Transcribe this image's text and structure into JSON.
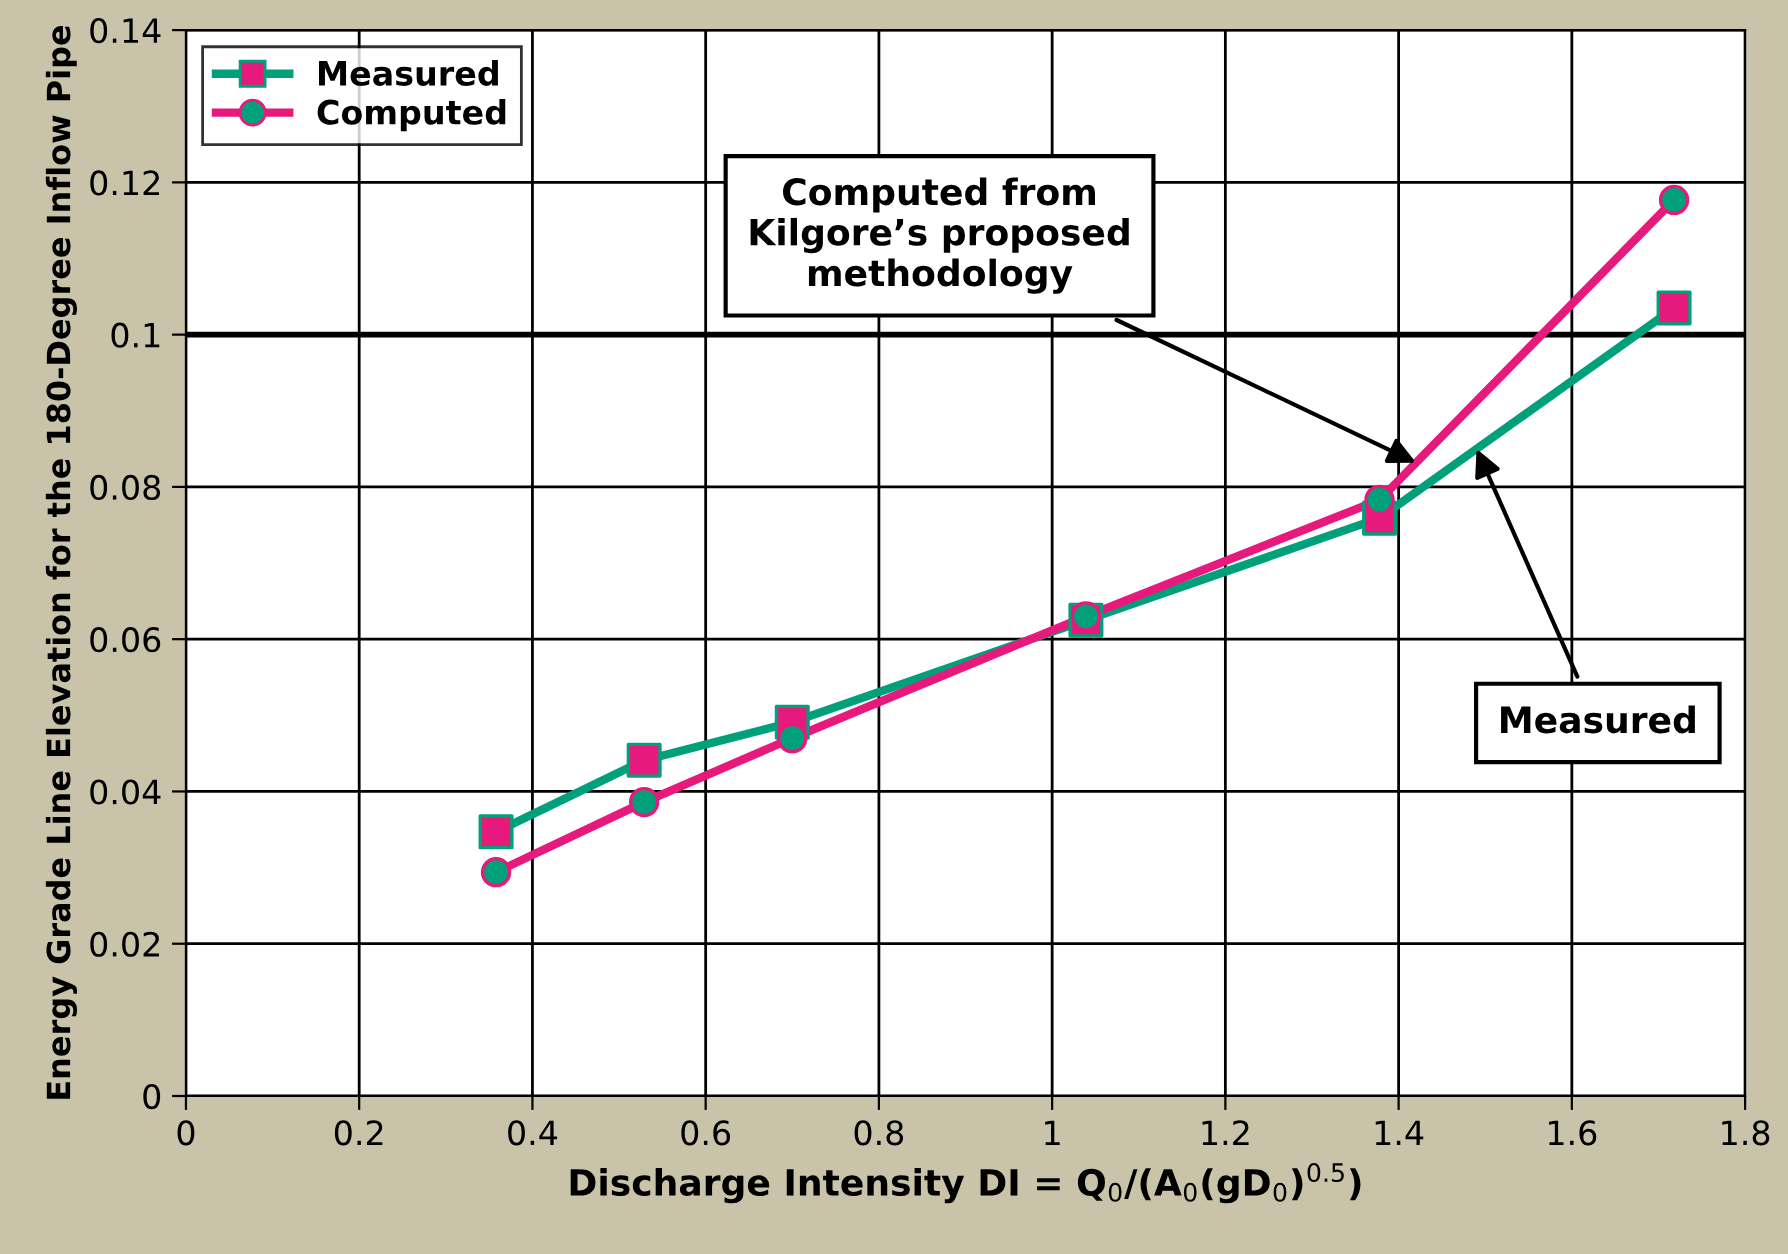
{
  "chart_data": {
    "type": "line",
    "xlabel": "Discharge Intensity DI = Q$_{0}$/(A$_{0}$(gD$_{0}$)$^{0.5}$)",
    "ylabel": "Energy Grade Line Elevation for the 180-Degree Inflow Pipe",
    "xlim": [
      0,
      1.8
    ],
    "xticks": [
      0,
      0.2,
      0.4,
      0.6,
      0.8,
      1,
      1.2,
      1.4,
      1.6,
      1.8
    ],
    "ylim": [
      0,
      0.14
    ],
    "yticks": [
      0,
      0.02,
      0.04,
      0.06,
      0.08,
      0.1,
      0.12,
      0.14
    ],
    "grid": true,
    "legend": "top left",
    "ref_lines": [
      {
        "axis": "y",
        "value": 0.1,
        "label": null,
        "color": "#000000"
      }
    ],
    "annotations": [
      {
        "text": "Computed from\nKilgore’s proposed\nmethodology",
        "x": 1.42,
        "y": 0.0832
      },
      {
        "text": "Measured",
        "x": 1.49,
        "y": 0.085
      }
    ],
    "series": [
      {
        "name": "Measured",
        "color": "#00a07a",
        "marker": "square",
        "colors": [
          "#e8197c",
          "#e8197c",
          "#e8197c",
          "#e8197c",
          "#e8197c",
          "#e8197c"
        ],
        "x": [
          0.358,
          0.529,
          0.7,
          1.039,
          1.378,
          1.718
        ],
        "values": [
          0.0347,
          0.0441,
          0.0491,
          0.0625,
          0.0759,
          0.1035
        ]
      },
      {
        "name": "Computed",
        "color": "#e8197c",
        "marker": "circle",
        "colors": [
          "#00a07a",
          "#00a07a",
          "#00a07a",
          "#00a07a",
          "#00a07a",
          "#00a07a"
        ],
        "x": [
          0.358,
          0.529,
          0.7,
          1.039,
          1.378,
          1.718
        ],
        "values": [
          0.0294,
          0.0386,
          0.047,
          0.063,
          0.0783,
          0.1177
        ]
      }
    ]
  }
}
